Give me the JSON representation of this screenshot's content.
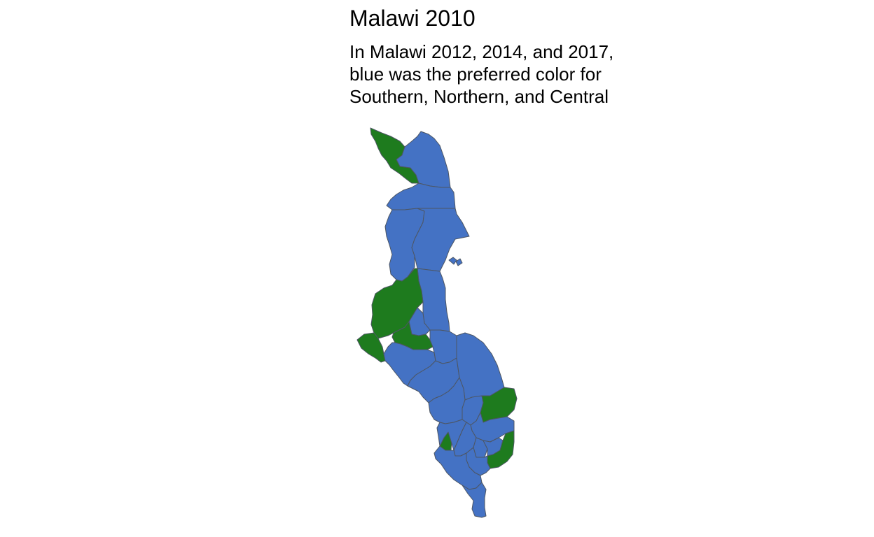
{
  "figure": {
    "title": "Malawi 2010",
    "subtitle_lines": [
      "In Malawi 2012, 2014, and 2017,",
      "blue was the preferred color for",
      "Southern, Northern, and Central"
    ]
  },
  "colors": {
    "blue": "#4472c4",
    "green": "#1e7b1e",
    "border": "#4d5663"
  },
  "map": {
    "country": "Malawi",
    "fill_categories": [
      "blue",
      "green"
    ],
    "regions": [
      {
        "id": "chitipa",
        "fill": "green"
      },
      {
        "id": "karonga",
        "fill": "blue"
      },
      {
        "id": "rumphi",
        "fill": "blue"
      },
      {
        "id": "mzimba",
        "fill": "blue"
      },
      {
        "id": "nkhata-bay",
        "fill": "blue"
      },
      {
        "id": "likoma",
        "fill": "blue"
      },
      {
        "id": "nkhotakota",
        "fill": "blue"
      },
      {
        "id": "kasungu",
        "fill": "green"
      },
      {
        "id": "ntchisi",
        "fill": "blue"
      },
      {
        "id": "mchinji",
        "fill": "green"
      },
      {
        "id": "dowa",
        "fill": "green"
      },
      {
        "id": "lilongwe",
        "fill": "blue"
      },
      {
        "id": "salima",
        "fill": "blue"
      },
      {
        "id": "dedza",
        "fill": "blue"
      },
      {
        "id": "mangochi",
        "fill": "blue"
      },
      {
        "id": "ntcheu",
        "fill": "blue"
      },
      {
        "id": "balaka",
        "fill": "blue"
      },
      {
        "id": "machinga",
        "fill": "green"
      },
      {
        "id": "zomba",
        "fill": "blue"
      },
      {
        "id": "mwanza",
        "fill": "green"
      },
      {
        "id": "neno",
        "fill": "blue"
      },
      {
        "id": "blantyre",
        "fill": "blue"
      },
      {
        "id": "chiradzulu",
        "fill": "blue"
      },
      {
        "id": "phalombe",
        "fill": "blue"
      },
      {
        "id": "mulanje",
        "fill": "green"
      },
      {
        "id": "thyolo",
        "fill": "blue"
      },
      {
        "id": "chikwawa",
        "fill": "blue"
      },
      {
        "id": "nsanje",
        "fill": "blue"
      }
    ]
  }
}
